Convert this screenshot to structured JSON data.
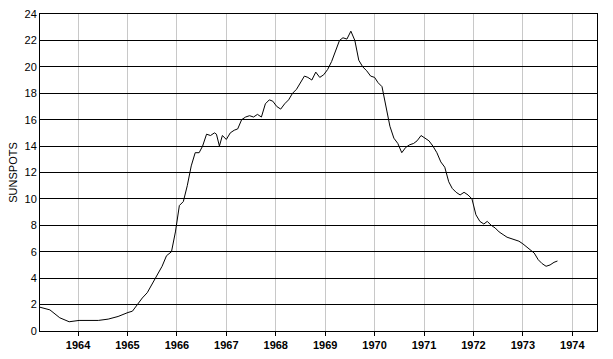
{
  "chart_data": {
    "type": "line",
    "y_label": "SUNSPOTS",
    "x": [
      1963.23,
      1963.43,
      1963.63,
      1963.82,
      1964.02,
      1964.22,
      1964.41,
      1964.61,
      1964.81,
      1965.01,
      1965.1,
      1965.2,
      1965.3,
      1965.4,
      1965.5,
      1965.6,
      1965.7,
      1965.79,
      1965.89,
      1965.97,
      1966.05,
      1966.13,
      1966.21,
      1966.29,
      1966.37,
      1966.45,
      1966.52,
      1966.6,
      1966.68,
      1966.76,
      1966.8,
      1966.86,
      1966.92,
      1967.0,
      1967.08,
      1967.16,
      1967.23,
      1967.31,
      1967.39,
      1967.47,
      1967.55,
      1967.63,
      1967.71,
      1967.79,
      1967.87,
      1967.94,
      1968.02,
      1968.1,
      1968.18,
      1968.26,
      1968.34,
      1968.42,
      1968.5,
      1968.58,
      1968.65,
      1968.73,
      1968.81,
      1968.89,
      1968.97,
      1969.05,
      1969.13,
      1969.21,
      1969.29,
      1969.36,
      1969.44,
      1969.52,
      1969.6,
      1969.68,
      1969.76,
      1969.84,
      1969.92,
      1970.0,
      1970.07,
      1970.15,
      1970.23,
      1970.31,
      1970.39,
      1970.47,
      1970.55,
      1970.63,
      1970.71,
      1970.79,
      1970.86,
      1970.94,
      1971.02,
      1971.1,
      1971.18,
      1971.26,
      1971.34,
      1971.42,
      1971.5,
      1971.57,
      1971.65,
      1971.73,
      1971.81,
      1971.89,
      1971.97,
      1972.05,
      1972.13,
      1972.21,
      1972.28,
      1972.36,
      1972.44,
      1972.52,
      1972.6,
      1972.68,
      1972.76,
      1972.84,
      1972.92,
      1973.0,
      1973.07,
      1973.15,
      1973.23,
      1973.31,
      1973.39,
      1973.47,
      1973.55,
      1973.63,
      1973.7
    ],
    "values": [
      1.8,
      1.6,
      1.0,
      0.7,
      0.8,
      0.8,
      0.8,
      0.9,
      1.1,
      1.4,
      1.5,
      2.0,
      2.5,
      2.9,
      3.6,
      4.2,
      4.9,
      5.7,
      6.0,
      7.5,
      9.5,
      9.8,
      11.0,
      12.5,
      13.5,
      13.5,
      14.0,
      14.9,
      14.8,
      15.0,
      14.9,
      14.0,
      14.8,
      14.5,
      15.0,
      15.2,
      15.3,
      16.0,
      16.2,
      16.3,
      16.2,
      16.4,
      16.2,
      17.2,
      17.5,
      17.4,
      17.0,
      16.8,
      17.2,
      17.5,
      18.0,
      18.3,
      18.8,
      19.3,
      19.2,
      19.0,
      19.6,
      19.2,
      19.4,
      19.8,
      20.4,
      21.2,
      22.0,
      22.2,
      22.1,
      22.7,
      22.0,
      20.5,
      20.0,
      19.7,
      19.3,
      19.2,
      18.8,
      18.5,
      17.0,
      15.5,
      14.6,
      14.2,
      13.5,
      13.9,
      14.1,
      14.2,
      14.4,
      14.8,
      14.6,
      14.4,
      14.0,
      13.5,
      12.8,
      12.4,
      11.3,
      10.8,
      10.5,
      10.3,
      10.5,
      10.3,
      10.0,
      8.8,
      8.3,
      8.1,
      8.3,
      8.0,
      7.8,
      7.5,
      7.3,
      7.1,
      7.0,
      6.9,
      6.8,
      6.6,
      6.4,
      6.2,
      5.9,
      5.4,
      5.1,
      4.9,
      5.0,
      5.2,
      5.3
    ],
    "color": "#000000",
    "xlim": [
      1963.23,
      1974.5
    ],
    "xticks": [
      1964,
      1965,
      1966,
      1967,
      1968,
      1969,
      1970,
      1971,
      1972,
      1973,
      1974
    ],
    "ylim": [
      0,
      24
    ],
    "yticks": [
      0,
      2,
      4,
      6,
      8,
      10,
      12,
      14,
      16,
      18,
      20,
      22,
      24
    ],
    "grid": true
  }
}
